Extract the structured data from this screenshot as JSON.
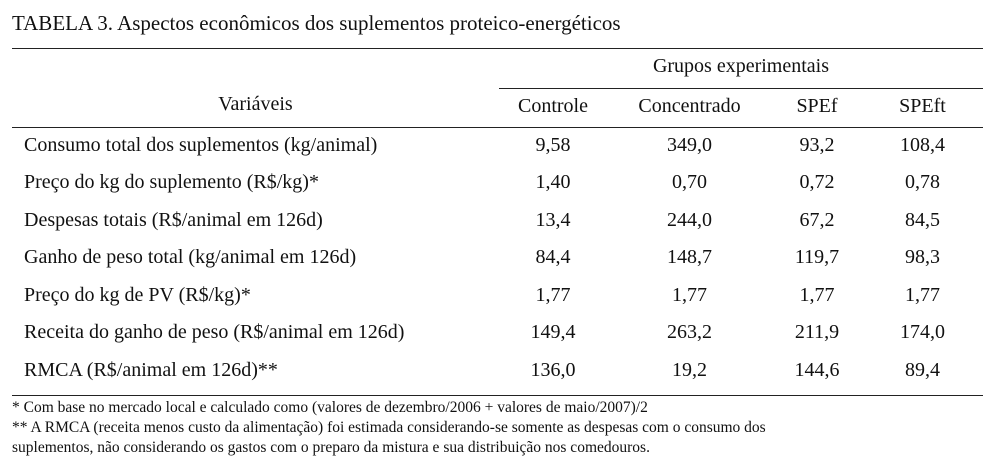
{
  "table": {
    "title": "TABELA 3. Aspectos econômicos dos suplementos proteico-energéticos",
    "group_header": "Grupos experimentais",
    "variables_header": "Variáveis",
    "columns": [
      "Controle",
      "Concentrado",
      "SPEf",
      "SPEft"
    ],
    "rows": [
      {
        "label": "Consumo total dos suplementos (kg/animal)",
        "values": [
          "9,58",
          "349,0",
          "93,2",
          "108,4"
        ]
      },
      {
        "label": "Preço do kg do suplemento (R$/kg)*",
        "values": [
          "1,40",
          "0,70",
          "0,72",
          "0,78"
        ]
      },
      {
        "label": "Despesas totais (R$/animal em 126d)",
        "values": [
          "13,4",
          "244,0",
          "67,2",
          "84,5"
        ]
      },
      {
        "label": "Ganho de peso total (kg/animal em 126d)",
        "values": [
          "84,4",
          "148,7",
          "119,7",
          "98,3"
        ]
      },
      {
        "label": "Preço do kg de PV (R$/kg)*",
        "values": [
          "1,77",
          "1,77",
          "1,77",
          "1,77"
        ]
      },
      {
        "label": "Receita do ganho de peso (R$/animal em 126d)",
        "values": [
          "149,4",
          "263,2",
          "211,9",
          "174,0"
        ]
      },
      {
        "label": "RMCA (R$/animal em 126d)**",
        "values": [
          "136,0",
          "19,2",
          "144,6",
          "89,4"
        ]
      }
    ],
    "footnotes": [
      "* Com base no mercado local e calculado como (valores de dezembro/2006 + valores de maio/2007)/2",
      "** A RMCA (receita menos custo da alimentação) foi estimada considerando-se somente as despesas com o consumo dos",
      "suplementos, não considerando os gastos com o preparo da mistura e sua distribuição nos comedouros."
    ]
  }
}
